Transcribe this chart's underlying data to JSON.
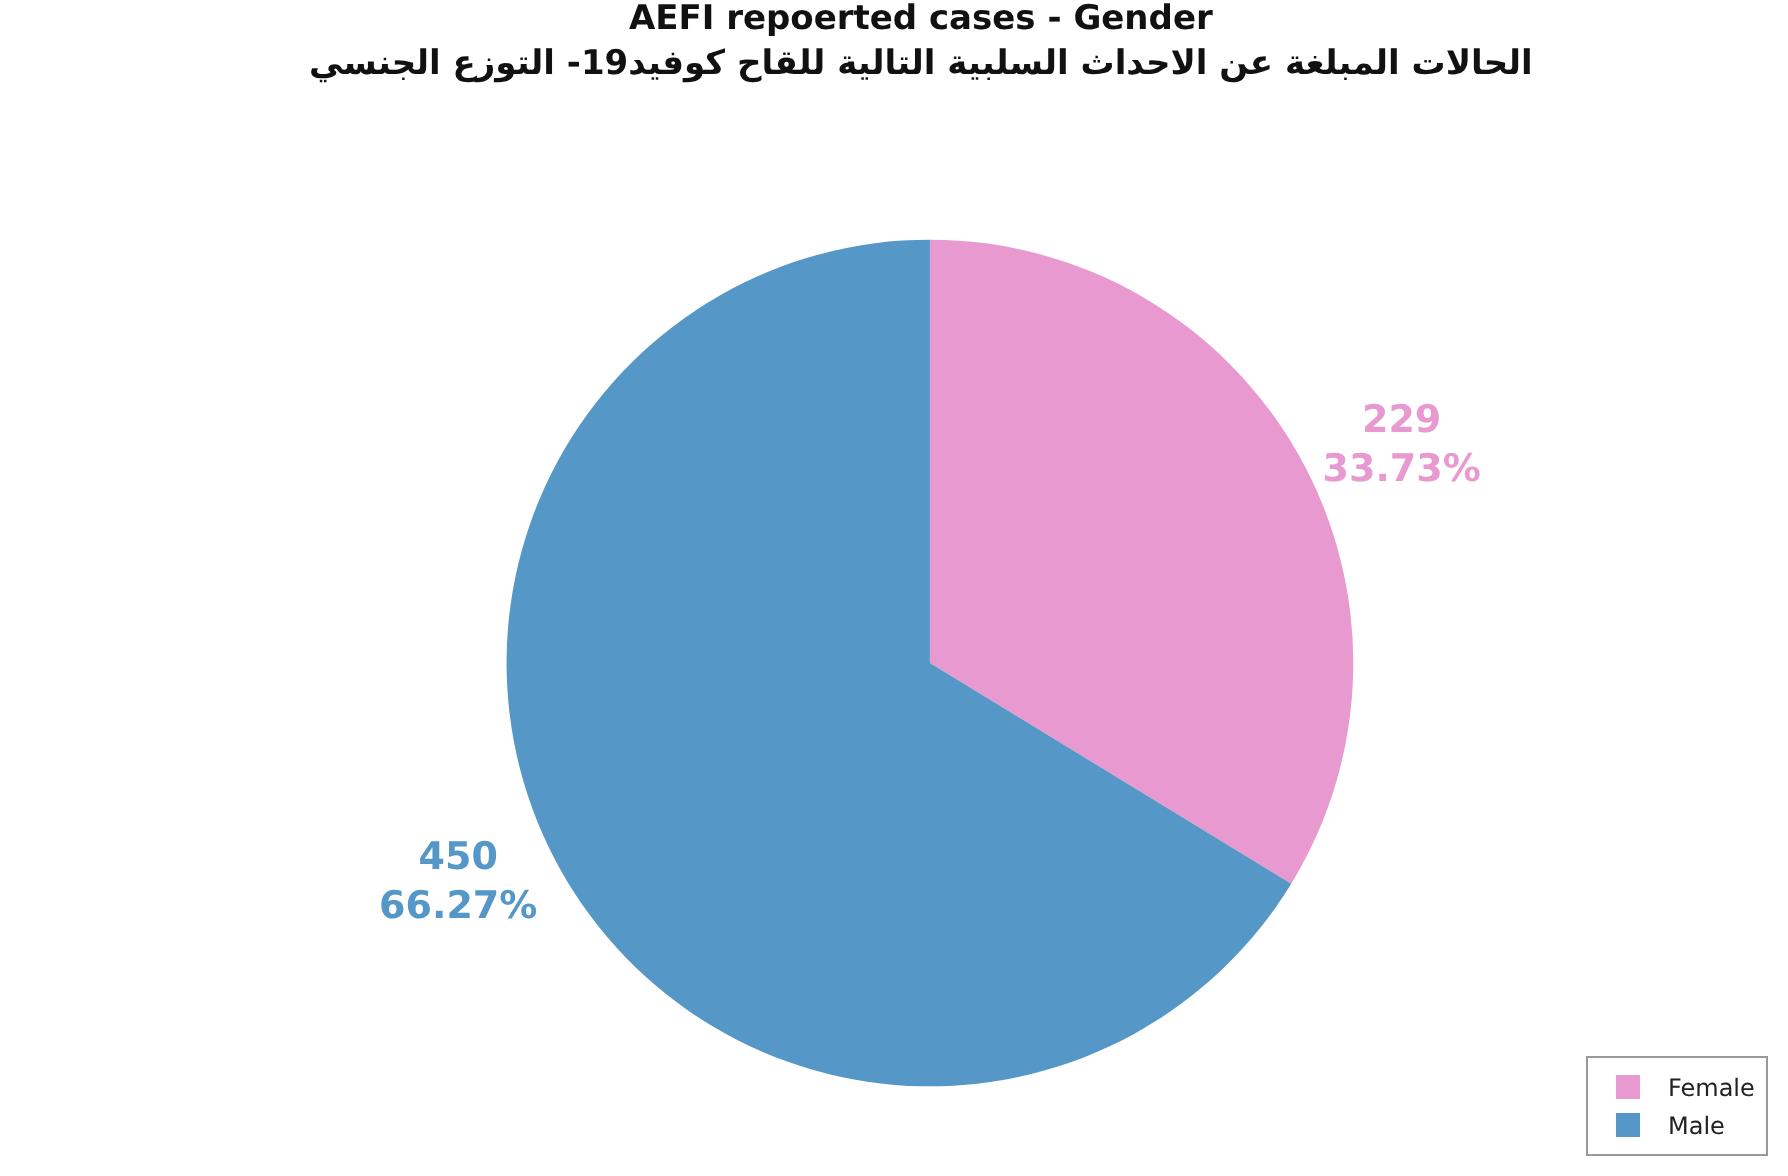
{
  "chart_data": {
    "type": "pie",
    "title": "AEFI repoerted cases - Gender",
    "subtitle": "الحالات المبلغة عن الاحداث السلبية التالية للقاح كوفيد19- التوزع الجنسي",
    "categories": [
      "Female",
      "Male"
    ],
    "values": [
      229,
      450
    ],
    "colors": [
      "#e899cf",
      "#5597c6"
    ],
    "value_labels": [
      "229\n33.73%",
      "450\n66.27%"
    ],
    "legend": "bottom right"
  }
}
